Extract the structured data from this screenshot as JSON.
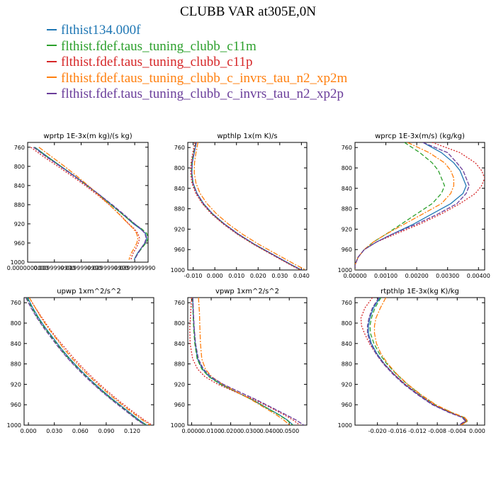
{
  "title": "CLUBB VAR at305E,0N",
  "legend": [
    {
      "label": "flthist134.000f",
      "color": "#1f77b4"
    },
    {
      "label": "flthist.fdef.taus_tuning_clubb_c11m",
      "color": "#2ca02c"
    },
    {
      "label": "flthist.fdef.taus_tuning_clubb_c11p",
      "color": "#d62728"
    },
    {
      "label": "flthist.fdef.taus_tuning_clubb_c_invrs_tau_n2_xp2m",
      "color": "#ff7f0e"
    },
    {
      "label": "flthist.fdef.taus_tuning_clubb_c_invrs_tau_n2_xp2p",
      "color": "#6a3d9a"
    }
  ],
  "chart_data": [
    {
      "type": "line",
      "title": "wprtp  1E-3x(m kg)/(s kg)",
      "xlim": [
        0.0,
        0.045
      ],
      "ylim": [
        1000,
        750
      ],
      "xticks": [
        "0.0000000000",
        "0.0099999990",
        "0.0199999990",
        "0.0299999990",
        "0.0399999990"
      ],
      "xtick_values": [
        0.0,
        0.01,
        0.02,
        0.03,
        0.04
      ],
      "yticks": [
        760,
        800,
        840,
        880,
        920,
        960,
        1000
      ],
      "y": [
        760,
        780,
        800,
        820,
        840,
        860,
        880,
        900,
        920,
        930,
        940,
        950,
        960,
        970,
        980,
        990,
        995
      ],
      "series": [
        {
          "values": [
            0.0027,
            0.0075,
            0.0125,
            0.0175,
            0.0223,
            0.027,
            0.0312,
            0.0355,
            0.0395,
            0.042,
            0.044,
            0.0445,
            0.0438,
            0.0425,
            0.0412,
            0.0402,
            0.0398
          ]
        },
        {
          "values": [
            0.0025,
            0.0073,
            0.0123,
            0.0173,
            0.0221,
            0.0268,
            0.0311,
            0.0354,
            0.0398,
            0.0425,
            0.0445,
            0.045,
            0.0442,
            0.0428,
            0.0414,
            0.0403,
            0.0399
          ]
        },
        {
          "values": [
            0.0012,
            0.006,
            0.0113,
            0.0165,
            0.0215,
            0.0262,
            0.0305,
            0.0343,
            0.0378,
            0.0398,
            0.0412,
            0.0418,
            0.0414,
            0.0406,
            0.0395,
            0.0388,
            0.0386
          ]
        },
        {
          "values": [
            0.0042,
            0.009,
            0.0138,
            0.0183,
            0.0226,
            0.0266,
            0.0305,
            0.0342,
            0.0376,
            0.0395,
            0.0407,
            0.0412,
            0.0408,
            0.0399,
            0.0388,
            0.0381,
            0.0379
          ]
        },
        {
          "values": [
            0.0022,
            0.007,
            0.0122,
            0.0173,
            0.0222,
            0.027,
            0.0316,
            0.0359,
            0.04,
            0.0423,
            0.0438,
            0.0443,
            0.0437,
            0.0425,
            0.0414,
            0.0404,
            0.04
          ]
        }
      ]
    },
    {
      "type": "line",
      "title": "wpthlp  1x(m K)/s",
      "xlim": [
        -0.0125,
        0.0425
      ],
      "ylim": [
        1000,
        750
      ],
      "xticks": [
        "-0.010",
        "0.000",
        "0.010",
        "0.020",
        "0.030",
        "0.040"
      ],
      "xtick_values": [
        -0.01,
        0.0,
        0.01,
        0.02,
        0.03,
        0.04
      ],
      "yticks": [
        760,
        800,
        840,
        880,
        920,
        960,
        1000
      ],
      "y": [
        750,
        770,
        790,
        810,
        830,
        850,
        870,
        890,
        910,
        930,
        950,
        970,
        990,
        1000
      ],
      "series": [
        {
          "values": [
            -0.0085,
            -0.0095,
            -0.0104,
            -0.0106,
            -0.01,
            -0.0082,
            -0.0052,
            -0.001,
            0.0045,
            0.011,
            0.0185,
            0.027,
            0.0355,
            0.04
          ]
        },
        {
          "values": [
            -0.0088,
            -0.0098,
            -0.0107,
            -0.0108,
            -0.0102,
            -0.0084,
            -0.0055,
            -0.0013,
            0.0042,
            0.0107,
            0.0182,
            0.0267,
            0.0352,
            0.0397
          ]
        },
        {
          "values": [
            -0.0092,
            -0.0102,
            -0.011,
            -0.0112,
            -0.0106,
            -0.0088,
            -0.0058,
            -0.0016,
            0.0039,
            0.0104,
            0.0179,
            0.0264,
            0.0349,
            0.0394
          ]
        },
        {
          "values": [
            -0.0078,
            -0.0087,
            -0.0094,
            -0.0095,
            -0.0087,
            -0.0068,
            -0.0036,
            0.0008,
            0.0063,
            0.0128,
            0.0204,
            0.0289,
            0.0374,
            0.042
          ]
        },
        {
          "values": [
            -0.0086,
            -0.0096,
            -0.0105,
            -0.0107,
            -0.0101,
            -0.0083,
            -0.0053,
            -0.0011,
            0.0044,
            0.0109,
            0.0184,
            0.0269,
            0.0354,
            0.0399
          ]
        }
      ]
    },
    {
      "type": "line",
      "title": "wprcp  1E-3x(m/s) (kg/kg)",
      "xlim": [
        0.0,
        0.0042
      ],
      "ylim": [
        1000,
        750
      ],
      "xticks": [
        "0.00000",
        "0.00100",
        "0.00200",
        "0.00300",
        "0.00400"
      ],
      "xtick_values": [
        0.0,
        0.001,
        0.002,
        0.003,
        0.004
      ],
      "yticks": [
        760,
        800,
        840,
        880,
        920,
        960,
        1000
      ],
      "y": [
        750,
        770,
        790,
        805,
        820,
        835,
        850,
        870,
        890,
        910,
        930,
        945,
        960,
        975,
        990,
        1000
      ],
      "series": [
        {
          "values": [
            0.0022,
            0.0028,
            0.0032,
            0.0034,
            0.0035,
            0.0036,
            0.0035,
            0.0031,
            0.0025,
            0.0019,
            0.0012,
            0.0007,
            0.0003,
            0.0001,
            0.0,
            0.0
          ]
        },
        {
          "values": [
            0.0016,
            0.0021,
            0.0025,
            0.0027,
            0.0028,
            0.0029,
            0.0028,
            0.0025,
            0.002,
            0.0015,
            0.001,
            0.0006,
            0.0003,
            0.0001,
            0.0,
            0.0
          ]
        },
        {
          "values": [
            0.0025,
            0.0034,
            0.0039,
            0.0041,
            0.0042,
            0.0041,
            0.0039,
            0.0034,
            0.0028,
            0.0021,
            0.0013,
            0.0007,
            0.0003,
            0.0001,
            0.0,
            0.0
          ]
        },
        {
          "values": [
            0.0017,
            0.0024,
            0.0029,
            0.0031,
            0.0032,
            0.0032,
            0.0031,
            0.0028,
            0.0022,
            0.0016,
            0.001,
            0.0006,
            0.0003,
            0.0001,
            0.0,
            0.0
          ]
        },
        {
          "values": [
            0.0022,
            0.003,
            0.0033,
            0.0035,
            0.0036,
            0.0037,
            0.0036,
            0.0033,
            0.0027,
            0.002,
            0.0012,
            0.0007,
            0.0003,
            0.0001,
            0.0,
            0.0
          ]
        }
      ]
    },
    {
      "type": "line",
      "title": "upwp  1xm^2/s^2",
      "xlim": [
        -0.005,
        0.145
      ],
      "ylim": [
        1000,
        750
      ],
      "xticks": [
        "0.000",
        "0.030",
        "0.060",
        "0.090",
        "0.120"
      ],
      "xtick_values": [
        0.0,
        0.03,
        0.06,
        0.09,
        0.12
      ],
      "yticks": [
        760,
        800,
        840,
        880,
        920,
        960,
        1000
      ],
      "y": [
        750,
        770,
        790,
        810,
        830,
        850,
        870,
        890,
        910,
        930,
        950,
        970,
        990,
        1000
      ],
      "series": [
        {
          "values": [
            -0.001,
            0.005,
            0.012,
            0.02,
            0.029,
            0.038,
            0.048,
            0.059,
            0.071,
            0.084,
            0.098,
            0.113,
            0.128,
            0.137
          ]
        },
        {
          "values": [
            -0.002,
            0.004,
            0.011,
            0.019,
            0.028,
            0.037,
            0.047,
            0.058,
            0.07,
            0.083,
            0.097,
            0.112,
            0.127,
            0.136
          ]
        },
        {
          "values": [
            0.001,
            0.008,
            0.016,
            0.024,
            0.033,
            0.043,
            0.053,
            0.064,
            0.076,
            0.089,
            0.103,
            0.118,
            0.134,
            0.143
          ]
        },
        {
          "values": [
            0.001,
            0.008,
            0.015,
            0.023,
            0.032,
            0.041,
            0.051,
            0.062,
            0.074,
            0.087,
            0.101,
            0.116,
            0.132,
            0.141
          ]
        },
        {
          "values": [
            -0.003,
            0.003,
            0.01,
            0.018,
            0.027,
            0.036,
            0.046,
            0.057,
            0.069,
            0.082,
            0.096,
            0.111,
            0.126,
            0.135
          ]
        }
      ]
    },
    {
      "type": "line",
      "title": "vpwp  1xm^2/s^2",
      "xlim": [
        -0.002,
        0.059
      ],
      "ylim": [
        1000,
        750
      ],
      "xticks": [
        "0.0000",
        "0.0100",
        "0.0200",
        "0.0300",
        "0.0400",
        "0.0500"
      ],
      "xtick_values": [
        0.0,
        0.01,
        0.02,
        0.03,
        0.04,
        0.05
      ],
      "yticks": [
        760,
        800,
        840,
        880,
        920,
        960,
        1000
      ],
      "y": [
        750,
        780,
        810,
        840,
        870,
        890,
        905,
        920,
        935,
        950,
        965,
        980,
        990,
        1000
      ],
      "series": [
        {
          "values": [
            0.0005,
            0.0008,
            0.0012,
            0.0018,
            0.003,
            0.0055,
            0.009,
            0.015,
            0.023,
            0.031,
            0.038,
            0.045,
            0.049,
            0.052
          ]
        },
        {
          "values": [
            0.0004,
            0.0007,
            0.001,
            0.0016,
            0.0028,
            0.0052,
            0.0088,
            0.0148,
            0.0228,
            0.0308,
            0.0378,
            0.0448,
            0.0488,
            0.0518
          ]
        },
        {
          "values": [
            0.0,
            -0.0005,
            -0.001,
            -0.0008,
            0.0005,
            0.003,
            0.0068,
            0.0135,
            0.0225,
            0.032,
            0.04,
            0.0475,
            0.052,
            0.0555
          ]
        },
        {
          "values": [
            0.0035,
            0.004,
            0.0042,
            0.0045,
            0.0052,
            0.007,
            0.0102,
            0.0158,
            0.0232,
            0.0305,
            0.037,
            0.0435,
            0.0472,
            0.0502
          ]
        },
        {
          "values": [
            0.0006,
            0.0009,
            0.0013,
            0.002,
            0.0034,
            0.006,
            0.0098,
            0.0162,
            0.0245,
            0.033,
            0.0408,
            0.0485,
            0.0535,
            0.0575
          ]
        }
      ]
    },
    {
      "type": "line",
      "title": "rtpthlp  1E-3x(kg K)/kg",
      "xlim": [
        -0.0245,
        0.0015
      ],
      "ylim": [
        1000,
        750
      ],
      "xticks": [
        "-0.020",
        "-0.016",
        "-0.012",
        "-0.008",
        "-0.004",
        "0.000"
      ],
      "xtick_values": [
        -0.02,
        -0.016,
        -0.012,
        -0.008,
        -0.004,
        0.0
      ],
      "yticks": [
        760,
        800,
        840,
        880,
        920,
        960,
        1000
      ],
      "y": [
        750,
        770,
        790,
        805,
        820,
        840,
        860,
        880,
        900,
        920,
        940,
        960,
        975,
        985,
        992,
        1000
      ],
      "series": [
        {
          "values": [
            -0.0195,
            -0.0208,
            -0.0215,
            -0.0218,
            -0.0218,
            -0.0212,
            -0.0201,
            -0.0186,
            -0.0167,
            -0.0145,
            -0.0118,
            -0.0088,
            -0.0055,
            -0.0028,
            -0.0022,
            -0.0035
          ]
        },
        {
          "values": [
            -0.0193,
            -0.0205,
            -0.0212,
            -0.0215,
            -0.0214,
            -0.0207,
            -0.0196,
            -0.0181,
            -0.0162,
            -0.014,
            -0.0114,
            -0.0084,
            -0.0052,
            -0.0026,
            -0.002,
            -0.0033
          ]
        },
        {
          "values": [
            -0.021,
            -0.0225,
            -0.0233,
            -0.0232,
            -0.0226,
            -0.0216,
            -0.0203,
            -0.0187,
            -0.0167,
            -0.0144,
            -0.0117,
            -0.0087,
            -0.0054,
            -0.0027,
            -0.0021,
            -0.0034
          ]
        },
        {
          "values": [
            -0.0183,
            -0.0194,
            -0.0203,
            -0.0206,
            -0.0206,
            -0.0202,
            -0.0193,
            -0.0179,
            -0.0161,
            -0.0139,
            -0.0113,
            -0.0083,
            -0.0051,
            -0.0025,
            -0.0019,
            -0.0032
          ]
        },
        {
          "values": [
            -0.0197,
            -0.021,
            -0.0217,
            -0.022,
            -0.022,
            -0.0214,
            -0.0203,
            -0.0188,
            -0.0169,
            -0.0147,
            -0.012,
            -0.009,
            -0.0057,
            -0.003,
            -0.0024,
            -0.0037
          ]
        }
      ]
    }
  ]
}
